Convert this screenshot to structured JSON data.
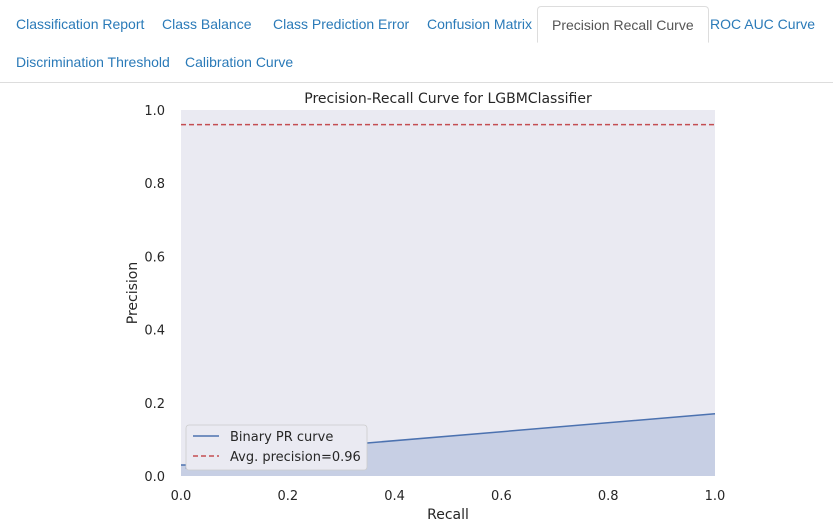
{
  "tabs": {
    "classification_report": "Classification Report",
    "class_balance": "Class Balance",
    "class_prediction_error": "Class Prediction Error",
    "confusion_matrix": "Confusion Matrix",
    "precision_recall_curve": "Precision Recall Curve",
    "roc_auc_curve": "ROC AUC Curve",
    "discrimination_threshold": "Discrimination Threshold",
    "calibration_curve": "Calibration Curve",
    "active": "Precision Recall Curve"
  },
  "colors": {
    "link": "#2a7ab8",
    "plot_background": "#eaeaf2",
    "curve": "#4c72b0",
    "avg_precision_line": "#c44e52"
  },
  "chart_data": {
    "type": "area",
    "title": "Precision-Recall Curve for LGBMClassifier",
    "xlabel": "Recall",
    "ylabel": "Precision",
    "xlim": [
      0.0,
      1.0
    ],
    "ylim": [
      0.0,
      1.0
    ],
    "xticks": [
      "0.0",
      "0.2",
      "0.4",
      "0.6",
      "0.8",
      "1.0"
    ],
    "yticks": [
      "0.0",
      "0.2",
      "0.4",
      "0.6",
      "0.8",
      "1.0"
    ],
    "grid": false,
    "legend_position": "lower-left",
    "series": [
      {
        "name": "Binary PR curve",
        "x": [
          0.0,
          0.01,
          0.01,
          0.02,
          1.0
        ],
        "y": [
          0.03,
          0.03,
          0.02,
          0.05,
          0.17
        ],
        "filled": true
      },
      {
        "name": "Avg. precision=0.96",
        "style": "dashed",
        "x": [
          0.0,
          1.0
        ],
        "y": [
          0.96,
          0.96
        ]
      }
    ]
  }
}
